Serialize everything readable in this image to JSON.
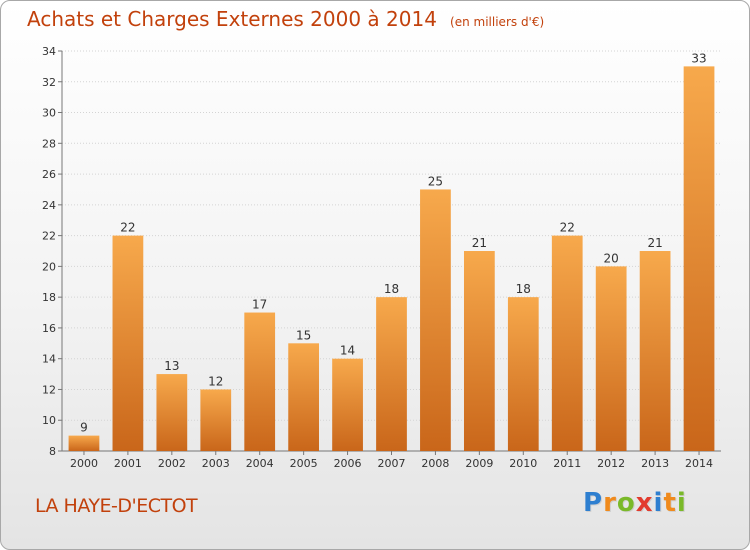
{
  "title": "Achats et Charges Externes 2000 à 2014",
  "subtitle": "(en milliers d'€)",
  "place": "LA HAYE-D'ECTOT",
  "logo": {
    "text": "Proxiti",
    "letters": [
      {
        "ch": "P",
        "color": "#2e7fd0"
      },
      {
        "ch": "r",
        "color": "#f08a1c"
      },
      {
        "ch": "o",
        "color": "#7ab929"
      },
      {
        "ch": "x",
        "color": "#e23b2e"
      },
      {
        "ch": "i",
        "color": "#2e7fd0"
      },
      {
        "ch": "t",
        "color": "#f08a1c"
      },
      {
        "ch": "i",
        "color": "#7ab929"
      }
    ]
  },
  "colors": {
    "bar_light": "#f7a94c",
    "bar_dark": "#c9661a",
    "axis": "#777777",
    "grid": "#d4d4d4",
    "title": "#c2410c"
  },
  "chart_data": {
    "type": "bar",
    "categories": [
      "2000",
      "2001",
      "2002",
      "2003",
      "2004",
      "2005",
      "2006",
      "2007",
      "2008",
      "2009",
      "2010",
      "2011",
      "2012",
      "2013",
      "2014"
    ],
    "values": [
      9,
      22,
      13,
      12,
      17,
      15,
      14,
      18,
      25,
      21,
      18,
      22,
      20,
      21,
      33
    ],
    "data_labels": [
      "9",
      "22",
      "13",
      "12",
      "17",
      "15",
      "14",
      "18",
      "25",
      "21",
      "18",
      "22",
      "20",
      "21",
      "33"
    ],
    "title": "Achats et Charges Externes 2000 à 2014",
    "subtitle": "(en milliers d'€)",
    "ylim": [
      8,
      34
    ],
    "yticks": [
      8,
      10,
      12,
      14,
      16,
      18,
      20,
      22,
      24,
      26,
      28,
      30,
      32,
      34
    ],
    "ytick_labels": [
      "8",
      "10",
      "12",
      "14",
      "16",
      "18",
      "20",
      "22",
      "24",
      "26",
      "28",
      "30",
      "32",
      "34"
    ],
    "grid": true,
    "legend": "none"
  }
}
